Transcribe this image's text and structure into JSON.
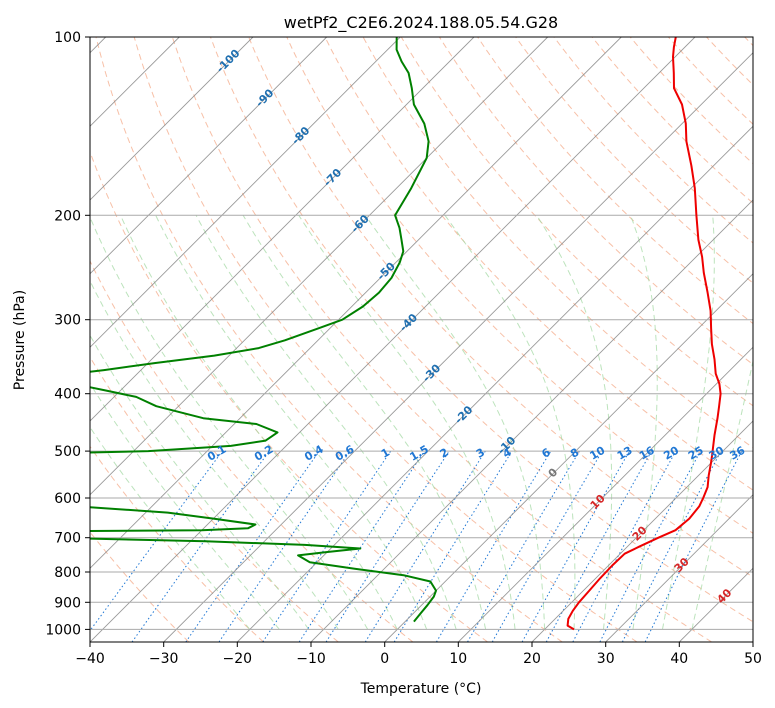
{
  "chart_data": {
    "type": "skew-t",
    "title": "wetPf2_C2E6.2024.188.05.54.G28",
    "xlabel": "Temperature (°C)",
    "ylabel": "Pressure (hPa)",
    "xlim": [
      -40,
      50
    ],
    "ylim": [
      1050,
      100
    ],
    "y_scale": "log",
    "x_ticks": [
      "−40",
      "−30",
      "−20",
      "−10",
      "0",
      "10",
      "20",
      "30",
      "40",
      "50"
    ],
    "x_tick_values": [
      -40,
      -30,
      -20,
      -10,
      0,
      10,
      20,
      30,
      40,
      50
    ],
    "y_ticks": [
      "1000",
      "900",
      "800",
      "700",
      "600",
      "500",
      "400",
      "300",
      "200",
      "100"
    ],
    "y_tick_values": [
      1000,
      900,
      800,
      700,
      600,
      500,
      400,
      300,
      200,
      100
    ],
    "grid": true,
    "colors": {
      "temperature": "#ee0000",
      "dewpoint": "#008000",
      "isotherm": "#888888",
      "dry_adiabat": "#f4a582",
      "moist_adiabat": "#a6d9a6",
      "mixing_ratio": "#1f77d4",
      "isotherm_label": "#1f6fb0",
      "theta_label": "#d62728"
    },
    "isotherm_labels": [
      "-100",
      "-90",
      "-80",
      "-70",
      "-60",
      "-50",
      "-40",
      "-30",
      "-20",
      "-10",
      "0",
      "10",
      "20",
      "30",
      "40"
    ],
    "mixing_ratio_labels": [
      "0.1",
      "0.2",
      "0.4",
      "0.6",
      "1",
      "1.5",
      "2",
      "3",
      "4",
      "6",
      "8",
      "10",
      "13",
      "16",
      "20",
      "25",
      "30",
      "36"
    ],
    "series": [
      {
        "key": "temperature",
        "points": [
          [
            1000,
            24.0
          ],
          [
            985,
            22.6
          ],
          [
            960,
            21.8
          ],
          [
            930,
            21.3
          ],
          [
            900,
            21.0
          ],
          [
            860,
            20.8
          ],
          [
            820,
            20.6
          ],
          [
            780,
            20.5
          ],
          [
            745,
            20.6
          ],
          [
            725,
            21.6
          ],
          [
            700,
            23.0
          ],
          [
            680,
            24.3
          ],
          [
            650,
            24.6
          ],
          [
            620,
            24.3
          ],
          [
            600,
            23.7
          ],
          [
            575,
            22.8
          ],
          [
            550,
            21.4
          ],
          [
            520,
            19.8
          ],
          [
            500,
            18.6
          ],
          [
            470,
            16.7
          ],
          [
            440,
            14.8
          ],
          [
            420,
            13.4
          ],
          [
            400,
            11.9
          ],
          [
            385,
            10.4
          ],
          [
            370,
            8.5
          ],
          [
            350,
            6.4
          ],
          [
            330,
            4.0
          ],
          [
            310,
            1.7
          ],
          [
            290,
            -0.7
          ],
          [
            270,
            -3.6
          ],
          [
            250,
            -6.8
          ],
          [
            235,
            -9.2
          ],
          [
            220,
            -12.0
          ],
          [
            200,
            -15.6
          ],
          [
            180,
            -19.5
          ],
          [
            165,
            -23.0
          ],
          [
            150,
            -27.0
          ],
          [
            140,
            -29.5
          ],
          [
            130,
            -32.6
          ],
          [
            122,
            -35.9
          ],
          [
            115,
            -38.0
          ],
          [
            108,
            -40.3
          ],
          [
            104,
            -41.5
          ],
          [
            100,
            -42.6
          ]
        ]
      },
      {
        "key": "dewpoint",
        "points": [
          [
            970,
            1.2
          ],
          [
            940,
            1.0
          ],
          [
            910,
            0.8
          ],
          [
            880,
            0.5
          ],
          [
            860,
            0.0
          ],
          [
            830,
            -2.0
          ],
          [
            810,
            -6.5
          ],
          [
            790,
            -14.0
          ],
          [
            770,
            -21.0
          ],
          [
            750,
            -23.5
          ],
          [
            740,
            -20.0
          ],
          [
            730,
            -16.0
          ],
          [
            720,
            -24.0
          ],
          [
            710,
            -38.0
          ],
          [
            700,
            -60.0
          ],
          [
            690,
            -74.0
          ],
          [
            683,
            -62.0
          ],
          [
            680,
            -40.0
          ],
          [
            675,
            -34.0
          ],
          [
            665,
            -33.5
          ],
          [
            650,
            -40.0
          ],
          [
            635,
            -47.0
          ],
          [
            620,
            -60.0
          ],
          [
            610,
            -72.0
          ],
          [
            600,
            -78.0
          ],
          [
            570,
            -90.0
          ],
          [
            540,
            -100.0
          ],
          [
            520,
            -100.0
          ],
          [
            505,
            -73.0
          ],
          [
            500,
            -58.0
          ],
          [
            490,
            -47.5
          ],
          [
            480,
            -43.5
          ],
          [
            465,
            -43.0
          ],
          [
            450,
            -47.0
          ],
          [
            440,
            -55.0
          ],
          [
            420,
            -63.0
          ],
          [
            405,
            -67.0
          ],
          [
            395,
            -72.0
          ],
          [
            380,
            -80.0
          ],
          [
            375,
            -82.0
          ],
          [
            372,
            -80.0
          ],
          [
            365,
            -75.0
          ],
          [
            355,
            -69.0
          ],
          [
            345,
            -62.0
          ],
          [
            335,
            -57.0
          ],
          [
            325,
            -54.5
          ],
          [
            310,
            -51.5
          ],
          [
            300,
            -49.5
          ],
          [
            285,
            -48.5
          ],
          [
            270,
            -48.2
          ],
          [
            255,
            -48.5
          ],
          [
            240,
            -49.5
          ],
          [
            230,
            -50.5
          ],
          [
            220,
            -52.3
          ],
          [
            210,
            -54.2
          ],
          [
            200,
            -56.5
          ],
          [
            180,
            -58.0
          ],
          [
            160,
            -60.0
          ],
          [
            150,
            -62.0
          ],
          [
            140,
            -65.0
          ],
          [
            130,
            -69.0
          ],
          [
            122,
            -71.5
          ],
          [
            115,
            -74.0
          ],
          [
            110,
            -76.5
          ],
          [
            105,
            -78.8
          ],
          [
            100,
            -80.5
          ]
        ]
      }
    ]
  }
}
